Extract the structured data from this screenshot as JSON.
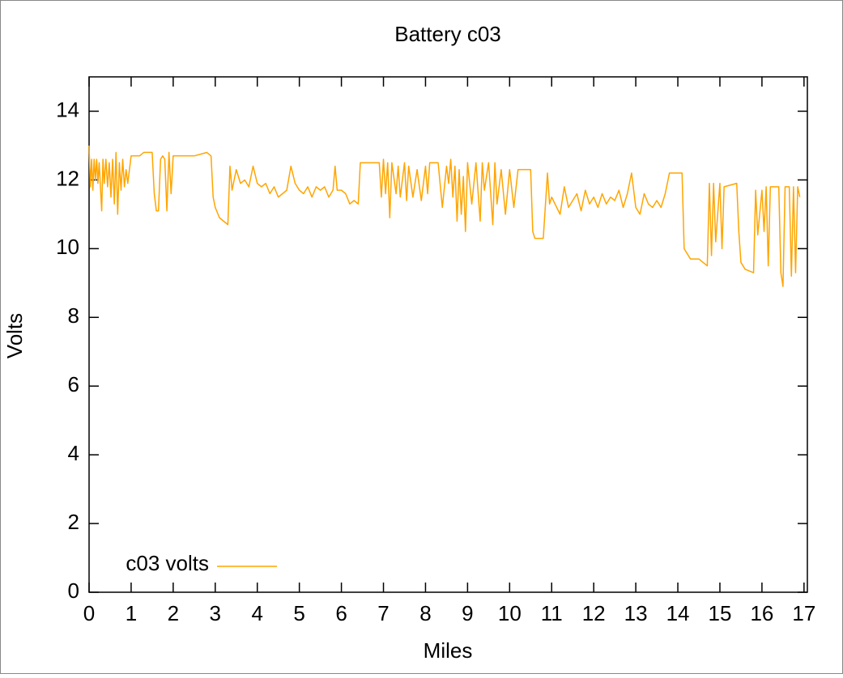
{
  "chart_data": {
    "type": "line",
    "title": "Battery c03",
    "xlabel": "Miles",
    "ylabel": "Volts",
    "x": [
      0,
      0.03,
      0.06,
      0.09,
      0.12,
      0.15,
      0.18,
      0.21,
      0.24,
      0.27,
      0.3,
      0.33,
      0.36,
      0.4,
      0.44,
      0.48,
      0.52,
      0.56,
      0.6,
      0.64,
      0.68,
      0.72,
      0.76,
      0.8,
      0.84,
      0.88,
      0.92,
      1.0,
      1.2,
      1.3,
      1.5,
      1.55,
      1.6,
      1.65,
      1.7,
      1.75,
      1.8,
      1.85,
      1.9,
      1.95,
      2.0,
      2.5,
      2.8,
      2.9,
      2.95,
      3.0,
      3.1,
      3.2,
      3.3,
      3.35,
      3.4,
      3.5,
      3.6,
      3.7,
      3.8,
      3.9,
      4.0,
      4.1,
      4.2,
      4.3,
      4.4,
      4.5,
      4.6,
      4.7,
      4.8,
      4.9,
      5.0,
      5.1,
      5.2,
      5.3,
      5.4,
      5.5,
      5.6,
      5.7,
      5.8,
      5.85,
      5.9,
      6.0,
      6.1,
      6.2,
      6.3,
      6.4,
      6.45,
      6.6,
      6.8,
      6.9,
      6.95,
      7.0,
      7.05,
      7.1,
      7.15,
      7.2,
      7.3,
      7.35,
      7.4,
      7.5,
      7.55,
      7.6,
      7.7,
      7.8,
      7.9,
      8.0,
      8.05,
      8.1,
      8.2,
      8.3,
      8.4,
      8.5,
      8.55,
      8.6,
      8.65,
      8.7,
      8.75,
      8.8,
      8.85,
      8.9,
      8.95,
      9.0,
      9.1,
      9.2,
      9.3,
      9.35,
      9.4,
      9.5,
      9.6,
      9.65,
      9.7,
      9.8,
      9.9,
      10.0,
      10.1,
      10.2,
      10.4,
      10.5,
      10.55,
      10.6,
      10.8,
      10.9,
      10.95,
      11.0,
      11.2,
      11.3,
      11.4,
      11.5,
      11.6,
      11.7,
      11.8,
      11.9,
      12.0,
      12.1,
      12.2,
      12.3,
      12.4,
      12.5,
      12.6,
      12.7,
      12.8,
      12.9,
      13.0,
      13.1,
      13.2,
      13.3,
      13.4,
      13.5,
      13.6,
      13.7,
      13.8,
      14.1,
      14.15,
      14.2,
      14.3,
      14.5,
      14.7,
      14.75,
      14.8,
      14.85,
      14.9,
      15.0,
      15.05,
      15.1,
      15.4,
      15.45,
      15.5,
      15.6,
      15.8,
      15.85,
      15.9,
      16.0,
      16.05,
      16.1,
      16.15,
      16.2,
      16.3,
      16.4,
      16.45,
      16.5,
      16.55,
      16.6,
      16.65,
      16.7,
      16.75,
      16.8,
      16.85,
      16.9
    ],
    "series": [
      {
        "name": "c03 volts",
        "color": "#ffa500",
        "values": [
          13.0,
          11.8,
          12.6,
          11.7,
          12.6,
          12.0,
          12.6,
          11.9,
          12.5,
          11.8,
          11.1,
          12.6,
          11.9,
          12.6,
          11.8,
          12.5,
          11.5,
          12.6,
          11.3,
          12.8,
          11.0,
          12.5,
          11.7,
          12.6,
          11.8,
          12.3,
          11.9,
          12.7,
          12.7,
          12.8,
          12.8,
          11.6,
          11.1,
          11.1,
          12.6,
          12.7,
          12.6,
          11.1,
          12.8,
          11.6,
          12.7,
          12.7,
          12.8,
          12.7,
          11.5,
          11.2,
          10.9,
          10.8,
          10.7,
          12.4,
          11.7,
          12.3,
          11.9,
          12.0,
          11.8,
          12.4,
          11.9,
          11.8,
          11.9,
          11.6,
          11.8,
          11.5,
          11.6,
          11.7,
          12.4,
          11.9,
          11.7,
          11.6,
          11.8,
          11.5,
          11.8,
          11.7,
          11.8,
          11.5,
          11.7,
          12.4,
          11.7,
          11.7,
          11.6,
          11.3,
          11.4,
          11.3,
          12.5,
          12.5,
          12.5,
          12.5,
          11.5,
          12.6,
          11.6,
          12.5,
          10.9,
          12.5,
          11.6,
          12.4,
          11.5,
          12.5,
          11.4,
          12.4,
          11.5,
          12.3,
          11.4,
          12.4,
          11.6,
          12.5,
          12.5,
          12.5,
          11.2,
          12.4,
          11.9,
          12.6,
          11.5,
          12.4,
          10.8,
          12.3,
          11.0,
          12.1,
          10.5,
          12.5,
          11.3,
          12.5,
          10.8,
          12.5,
          11.7,
          12.5,
          10.7,
          12.5,
          11.3,
          12.3,
          11.0,
          12.3,
          11.2,
          12.3,
          12.3,
          12.3,
          10.5,
          10.3,
          10.3,
          12.2,
          11.3,
          11.5,
          11.0,
          11.8,
          11.2,
          11.4,
          11.6,
          11.1,
          11.7,
          11.3,
          11.5,
          11.2,
          11.6,
          11.3,
          11.5,
          11.4,
          11.7,
          11.2,
          11.6,
          12.2,
          11.2,
          11.0,
          11.6,
          11.3,
          11.2,
          11.4,
          11.2,
          11.6,
          12.2,
          12.2,
          10.0,
          9.9,
          9.7,
          9.7,
          9.5,
          11.9,
          9.8,
          11.9,
          10.2,
          11.9,
          10.0,
          11.8,
          11.9,
          10.5,
          9.6,
          9.4,
          9.3,
          11.7,
          10.4,
          11.7,
          10.5,
          11.8,
          9.5,
          11.8,
          11.8,
          11.8,
          9.3,
          8.9,
          11.8,
          11.8,
          11.8,
          9.2,
          11.8,
          9.3,
          11.8,
          11.5
        ]
      }
    ],
    "xlim": [
      0,
      17.08
    ],
    "ylim": [
      0,
      15
    ],
    "xticks": [
      0,
      1,
      2,
      3,
      4,
      5,
      6,
      7,
      8,
      9,
      10,
      11,
      12,
      13,
      14,
      15,
      16,
      17
    ],
    "yticks": [
      0,
      2,
      4,
      6,
      8,
      10,
      12,
      14
    ],
    "grid": false,
    "legend": "bottom left"
  }
}
